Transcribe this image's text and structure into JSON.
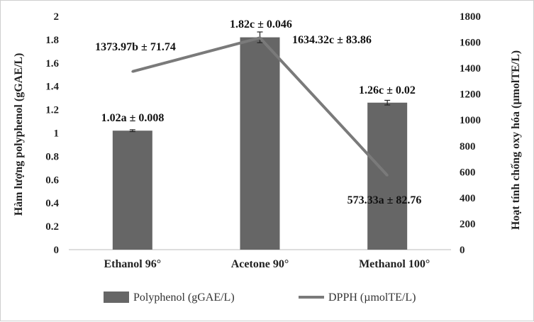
{
  "chart_data": {
    "type": "bar+line",
    "categories": [
      "Ethanol 96°",
      "Acetone 90°",
      "Methanol 100°"
    ],
    "series": [
      {
        "name": "Polyphenol (gGAE/L)",
        "type": "bar",
        "axis": "left",
        "values": [
          1.02,
          1.82,
          1.26
        ],
        "errors": [
          0.008,
          0.046,
          0.02
        ],
        "labels": [
          "1.02a ± 0.008",
          "1.82c ± 0.046",
          "1.26c ± 0.02"
        ],
        "color": "#666666"
      },
      {
        "name": "DPPH (µmolTE/L)",
        "type": "line",
        "axis": "right",
        "values": [
          1373.97,
          1634.32,
          573.33
        ],
        "labels": [
          "1373.97b ± 71.74",
          "1634.32c ± 83.86",
          "573.33a ± 82.76"
        ],
        "color": "#7a7a7a"
      }
    ],
    "ylabel": "Hàm lượng polyphenol (gGAE/L)",
    "y2label": "Hoạt tính chống oxy hóa (µmolTE/L)",
    "ylim": [
      0,
      2
    ],
    "y2lim": [
      0,
      1800
    ],
    "yticks": [
      "0",
      "0.2",
      "0.4",
      "0.6",
      "0.8",
      "1",
      "1.2",
      "1.4",
      "1.6",
      "1.8",
      "2"
    ],
    "y2ticks": [
      "0",
      "200",
      "400",
      "600",
      "800",
      "1000",
      "1200",
      "1400",
      "1600",
      "1800"
    ],
    "grid": false,
    "legend": "bottom"
  }
}
